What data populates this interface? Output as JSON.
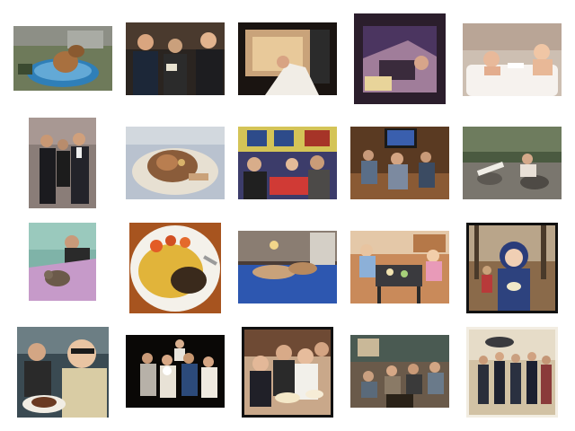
{
  "gallery": {
    "thumbnails": [
      {
        "id": "dog-in-kiddie-pool"
      },
      {
        "id": "three-people-party"
      },
      {
        "id": "hand-microwave"
      },
      {
        "id": "man-lying-on-bed"
      },
      {
        "id": "two-kids-in-bathtub"
      },
      {
        "id": "couple-formal-wear"
      },
      {
        "id": "fish-head-on-plate"
      },
      {
        "id": "group-at-restaurant-table"
      },
      {
        "id": "people-playing-video-game"
      },
      {
        "id": "dog-on-rocky-shore"
      },
      {
        "id": "person-in-bed-with-cat"
      },
      {
        "id": "plate-of-yellow-rice"
      },
      {
        "id": "dogs-on-blue-bed"
      },
      {
        "id": "toddlers-at-table"
      },
      {
        "id": "girl-in-hooded-coat"
      },
      {
        "id": "man-with-glasses-eating"
      },
      {
        "id": "group-at-night-party"
      },
      {
        "id": "teens-with-cake"
      },
      {
        "id": "people-in-living-room"
      },
      {
        "id": "group-in-suits-outdoors"
      }
    ]
  }
}
